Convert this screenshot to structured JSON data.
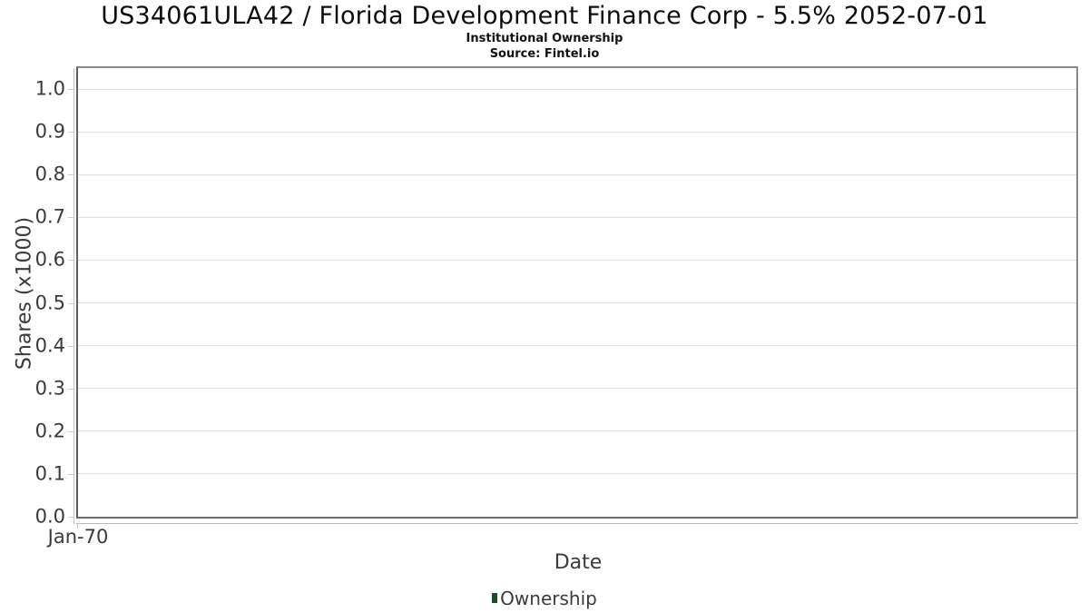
{
  "chart": {
    "title": "US34061ULA42 / Florida Development Finance Corp - 5.5% 2052-07-01",
    "subtitle": "Institutional Ownership",
    "source": "Source: Fintel.io"
  },
  "colors": {
    "legend_marker": "#1f4d2a",
    "plot_border": "#8a8a8a",
    "gridline": "#e0e0e0",
    "tick_text": "#3a3a3a"
  },
  "chart_data": {
    "type": "line",
    "title": "US34061ULA42 / Florida Development Finance Corp - 5.5% 2052-07-01",
    "subtitle": "Institutional Ownership",
    "source": "Source: Fintel.io",
    "xlabel": "Date",
    "ylabel": "Shares (x1000)",
    "xticks": [
      "Jan-70"
    ],
    "yticks": [
      0.0,
      0.1,
      0.2,
      0.3,
      0.4,
      0.5,
      0.6,
      0.7,
      0.8,
      0.9,
      1.0
    ],
    "ylim": [
      0,
      1.05
    ],
    "xlim_labels": [
      "Jan-70"
    ],
    "grid": true,
    "legend_position": "bottom",
    "series": [
      {
        "name": "Ownership",
        "color": "#1f4d2a",
        "x": [],
        "values": []
      }
    ],
    "note": "empty chart - no data points plotted"
  }
}
